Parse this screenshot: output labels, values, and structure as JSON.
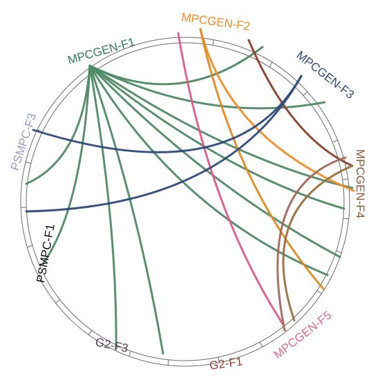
{
  "colors": {
    "ring": "#6a6a6a",
    "background": "#ffffff"
  },
  "nodes": [
    {
      "id": "mpcgen_f1",
      "label": "MPCGEN-F1",
      "color": "#2e7d5b"
    },
    {
      "id": "mpcgen_f2",
      "label": "MPCGEN-F2",
      "color": "#f28c28"
    },
    {
      "id": "mpcgen_f3",
      "label": "MPCGEN-F3",
      "color": "#2f4a7a"
    },
    {
      "id": "mpcgen_f4",
      "label": "MPCGEN-F4",
      "color": "#8a5a3c"
    },
    {
      "id": "mpcgen_f5",
      "label": "MPCGEN-F5",
      "color": "#e06c8a"
    },
    {
      "id": "g2_f1",
      "label": "G2-F1",
      "color": "#9b3a2e"
    },
    {
      "id": "g2_f3",
      "label": "G2-F3",
      "color": "#5a3a5a"
    },
    {
      "id": "psmpc_f1",
      "label": "PSMPC-F1",
      "color": "#111111"
    },
    {
      "id": "psmpc_f3",
      "label": "PSMPC-F3",
      "color": "#9a9ad0"
    }
  ],
  "links": [
    {
      "from": "mpcgen_f1",
      "to": "mpcgen_f3",
      "color": "#4f8a66"
    },
    {
      "from": "mpcgen_f1",
      "to": "mpcgen_f3",
      "color": "#4f8a66"
    },
    {
      "from": "mpcgen_f1",
      "to": "mpcgen_f4",
      "color": "#4f8a66"
    },
    {
      "from": "mpcgen_f1",
      "to": "mpcgen_f4",
      "color": "#4f8a66"
    },
    {
      "from": "mpcgen_f1",
      "to": "mpcgen_f5",
      "color": "#4f8a66"
    },
    {
      "from": "mpcgen_f1",
      "to": "mpcgen_f5",
      "color": "#4f8a66"
    },
    {
      "from": "mpcgen_f1",
      "to": "g2_f3",
      "color": "#4f8a66"
    },
    {
      "from": "mpcgen_f1",
      "to": "g2_f3",
      "color": "#4f8a66"
    },
    {
      "from": "mpcgen_f1",
      "to": "psmpc_f1",
      "color": "#4f8a66"
    },
    {
      "from": "mpcgen_f1",
      "to": "psmpc_f3",
      "color": "#4f8a66"
    },
    {
      "from": "mpcgen_f2",
      "to": "mpcgen_f4",
      "color": "#f28c28"
    },
    {
      "from": "mpcgen_f2",
      "to": "mpcgen_f5",
      "color": "#e05a8a"
    },
    {
      "from": "mpcgen_f2",
      "to": "mpcgen_f5",
      "color": "#e08a20"
    },
    {
      "from": "mpcgen_f2",
      "to": "mpcgen_f4",
      "color": "#8a3f2a"
    },
    {
      "from": "mpcgen_f3",
      "to": "psmpc_f3",
      "color": "#2f4a7a"
    },
    {
      "from": "mpcgen_f3",
      "to": "psmpc_f1",
      "color": "#2f4a7a"
    },
    {
      "from": "mpcgen_f4",
      "to": "mpcgen_f5",
      "color": "#a06a5a"
    },
    {
      "from": "mpcgen_f4",
      "to": "mpcgen_f5",
      "color": "#9a7040"
    }
  ]
}
